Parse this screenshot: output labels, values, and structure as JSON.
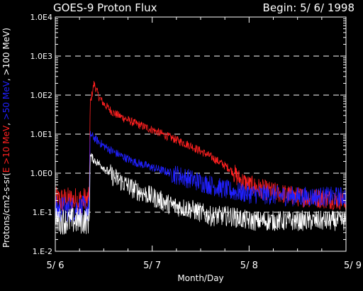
{
  "header": {
    "title": "GOES-9 Proton Flux",
    "begin": "Begin: 5/ 6/ 1998"
  },
  "colors": {
    "background": "#000000",
    "axes": "#ffffff",
    "e10": "#ff2020",
    "e50": "#2020ff",
    "e100": "#ffffff"
  },
  "chart_data": {
    "type": "line",
    "title": "GOES-9 Proton Flux",
    "xlabel": "Month/Day",
    "ylabel_parts": [
      {
        "text": "Protons/cm2-s-sr(",
        "color": "#ffffff"
      },
      {
        "text": "E >10 MeV",
        "color": "#ff2020"
      },
      {
        "text": ", ",
        "color": "#ffffff"
      },
      {
        "text": ">50 MeV",
        "color": "#2020ff"
      },
      {
        "text": ", >100 MeV)",
        "color": "#ffffff"
      }
    ],
    "y_scale": "log",
    "ylim": [
      0.01,
      10000
    ],
    "y_ticks": [
      {
        "value": 0.01,
        "label": "1.E-2"
      },
      {
        "value": 0.1,
        "label": "1.E-1"
      },
      {
        "value": 1,
        "label": "1.0E0"
      },
      {
        "value": 10,
        "label": "1.0E1"
      },
      {
        "value": 100,
        "label": "1.0E2"
      },
      {
        "value": 1000,
        "label": "1.0E3"
      },
      {
        "value": 10000,
        "label": "1.0E4"
      }
    ],
    "x_unit": "days since 5/6/1998",
    "xlim": [
      0,
      3
    ],
    "x_ticks": [
      {
        "value": 0,
        "label": "5/ 6"
      },
      {
        "value": 1,
        "label": "5/ 7"
      },
      {
        "value": 2,
        "label": "5/ 8"
      },
      {
        "value": 3,
        "label": "5/ 9"
      }
    ],
    "grid": "horizontal dashed",
    "series": [
      {
        "name": "E >10 MeV",
        "color": "#ff2020",
        "x": [
          0,
          0.25,
          0.35,
          0.36,
          0.4,
          0.45,
          0.5,
          0.6,
          0.8,
          1.0,
          1.2,
          1.4,
          1.6,
          1.8,
          1.9,
          2.0,
          2.2,
          2.5,
          3.0
        ],
        "y": [
          0.2,
          0.2,
          0.2,
          60,
          200,
          90,
          60,
          35,
          20,
          13,
          8,
          5,
          2.7,
          1.3,
          0.7,
          0.5,
          0.35,
          0.25,
          0.2
        ]
      },
      {
        "name": ">50 MeV",
        "color": "#2020ff",
        "x": [
          0,
          0.25,
          0.35,
          0.36,
          0.4,
          0.5,
          0.6,
          0.8,
          1.0,
          1.2,
          1.4,
          1.6,
          1.8,
          2.0,
          2.2,
          2.5,
          3.0
        ],
        "y": [
          0.12,
          0.12,
          0.12,
          10,
          8,
          5,
          3.5,
          2,
          1.4,
          1.0,
          0.7,
          0.5,
          0.35,
          0.3,
          0.28,
          0.25,
          0.25
        ]
      },
      {
        "name": ">100 MeV",
        "color": "#ffffff",
        "x": [
          0,
          0.25,
          0.35,
          0.36,
          0.4,
          0.5,
          0.6,
          0.8,
          1.0,
          1.2,
          1.4,
          1.6,
          1.8,
          2.0,
          2.5,
          3.0
        ],
        "y": [
          0.06,
          0.06,
          0.06,
          2.8,
          2.2,
          1.4,
          0.8,
          0.4,
          0.25,
          0.15,
          0.12,
          0.08,
          0.08,
          0.06,
          0.06,
          0.06
        ]
      }
    ]
  }
}
